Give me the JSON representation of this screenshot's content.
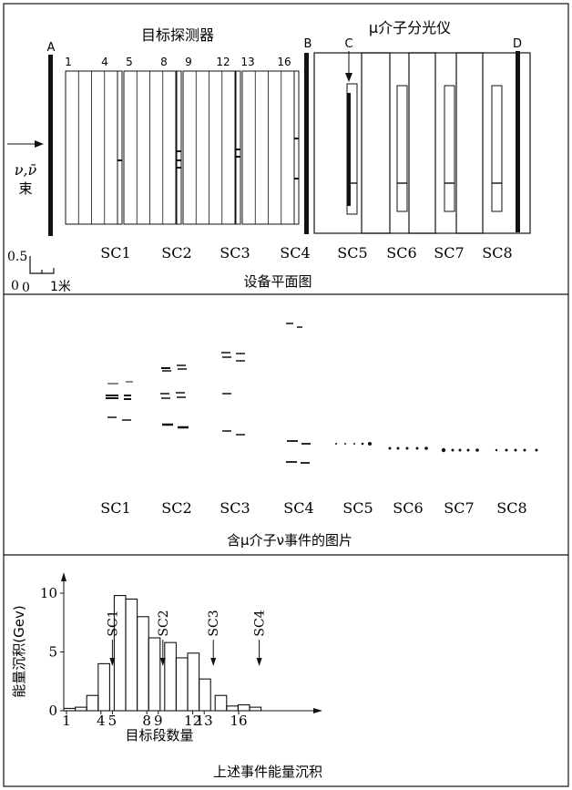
{
  "panel1": {
    "target_title": "目标探测器",
    "spectrometer_title": "μ介子分光仪",
    "labels_abcd": [
      "A",
      "B",
      "C",
      "D"
    ],
    "module_numbers": [
      "1",
      "4",
      "5",
      "8",
      "9",
      "12",
      "13",
      "16"
    ],
    "beam_label_top": "ν,ν̄",
    "beam_label_bottom": "束",
    "chambers": [
      "SC1",
      "SC2",
      "SC3",
      "SC4",
      "SC5",
      "SC6",
      "SC7",
      "SC8"
    ],
    "scale_top": "0.5",
    "scale_zero": "0",
    "scale_zero2": "0",
    "scale_unit": "1米",
    "caption": "设备平面图"
  },
  "panel2": {
    "chambers": [
      "SC1",
      "SC2",
      "SC3",
      "SC4",
      "SC5",
      "SC6",
      "SC7",
      "SC8"
    ],
    "caption": "含μ介子ν事件的图片"
  },
  "panel3": {
    "ylabel": "能量沉积(Gev)",
    "xlabel": "目标段数量",
    "caption": "上述事件能量沉积",
    "markers": [
      "SC1",
      "SC2",
      "SC3",
      "SC4"
    ]
  },
  "chart_data": {
    "type": "bar",
    "x": [
      1,
      2,
      3,
      4,
      5,
      6,
      7,
      8,
      9,
      10,
      11,
      12,
      13,
      14,
      15,
      16
    ],
    "values": [
      0.2,
      0.3,
      1.3,
      4.0,
      9.8,
      9.5,
      8.0,
      6.2,
      5.8,
      4.5,
      4.9,
      2.7,
      1.3,
      0.4,
      0.5,
      0.3
    ],
    "xticks": [
      "1",
      "4",
      "5",
      "8",
      "9",
      "12",
      "13",
      "16"
    ],
    "yticks": [
      "0",
      "5",
      "10"
    ],
    "ylim": [
      0,
      11
    ],
    "xlabel": "目标段数量",
    "ylabel": "能量沉积(Gev)"
  }
}
